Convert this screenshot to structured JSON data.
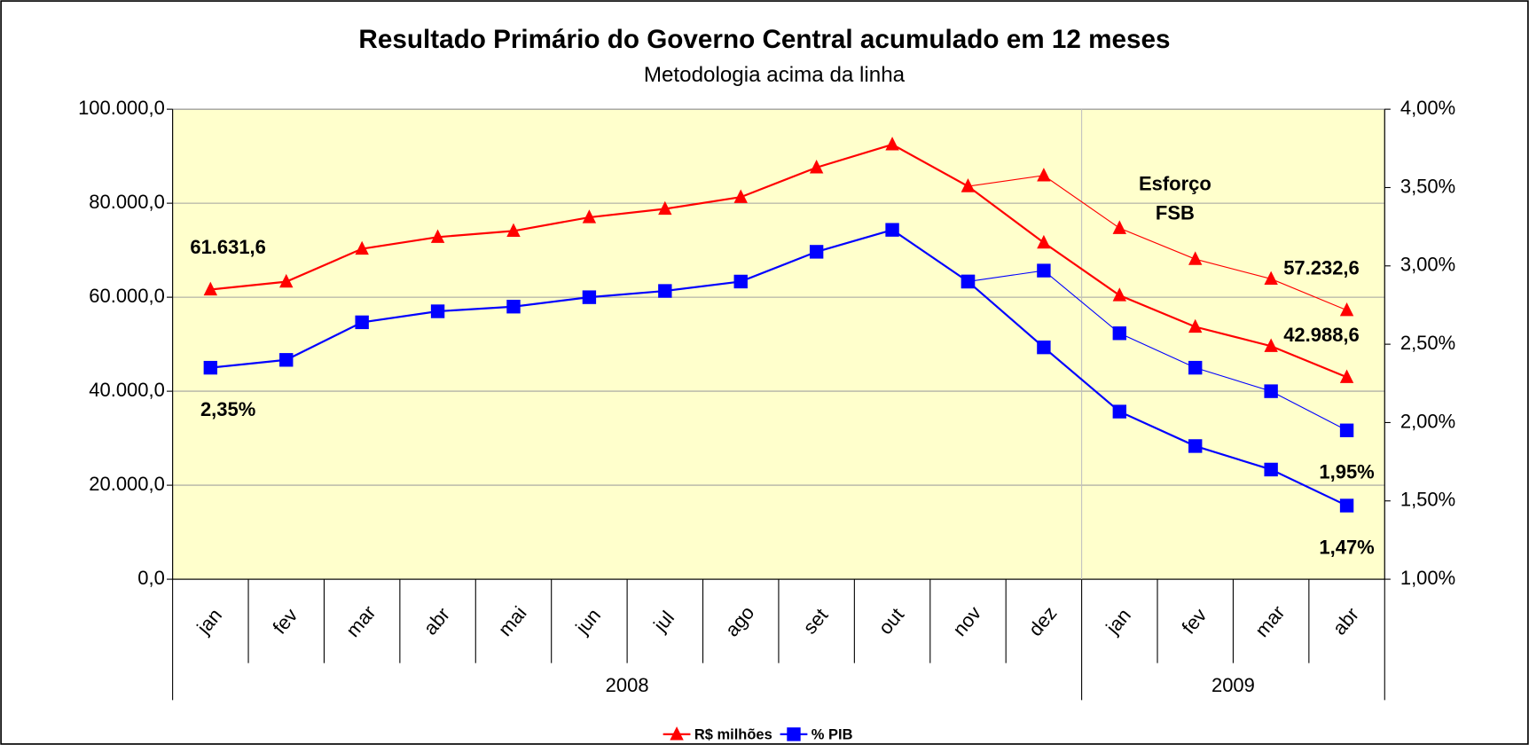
{
  "chart_data": {
    "type": "line",
    "title": "Resultado Primário do Governo Central acumulado em 12 meses",
    "subtitle": "Metodologia acima da linha",
    "categories": [
      "jan",
      "fev",
      "mar",
      "abr",
      "mai",
      "jun",
      "jul",
      "ago",
      "set",
      "out",
      "nov",
      "dez",
      "jan",
      "fev",
      "mar",
      "abr"
    ],
    "groups": [
      {
        "label": "2008",
        "count": 12
      },
      {
        "label": "2009",
        "count": 4
      }
    ],
    "annotation": [
      "Esforço",
      "FSB"
    ],
    "ylim": [
      0,
      100000
    ],
    "yticks": [
      {
        "value": 0,
        "label": "0,0"
      },
      {
        "value": 20000,
        "label": "20.000,0"
      },
      {
        "value": 40000,
        "label": "40.000,0"
      },
      {
        "value": 60000,
        "label": "60.000,0"
      },
      {
        "value": 80000,
        "label": "80.000,0"
      },
      {
        "value": 100000,
        "label": "100.000,0"
      }
    ],
    "y2lim": [
      1,
      4
    ],
    "y2ticks": [
      {
        "value": 1,
        "label": "1,00%"
      },
      {
        "value": 1.5,
        "label": "1,50%"
      },
      {
        "value": 2,
        "label": "2,00%"
      },
      {
        "value": 2.5,
        "label": "2,50%"
      },
      {
        "value": 3,
        "label": "3,00%"
      },
      {
        "value": 3.5,
        "label": "3,50%"
      },
      {
        "value": 4,
        "label": "4,00%"
      }
    ],
    "grid": true,
    "series": [
      {
        "name": "R$ milhões",
        "color": "#ff0000",
        "marker": "triangle",
        "line_width": 2,
        "values": [
          61631.6,
          63300,
          70300,
          72800,
          74100,
          77000,
          78800,
          81300,
          87600,
          92500,
          83600,
          71600,
          60400,
          53700,
          49600,
          42988.6
        ],
        "value_labels": [
          "61.631,6",
          null,
          null,
          null,
          null,
          null,
          null,
          null,
          null,
          null,
          null,
          null,
          null,
          null,
          null,
          "42.988,6"
        ]
      },
      {
        "name": "% PIB",
        "color": "#0000ff",
        "marker": "square",
        "line_width": 2,
        "axis": "y2",
        "values": [
          2.35,
          2.4,
          2.64,
          2.71,
          2.74,
          2.8,
          2.84,
          2.9,
          3.09,
          3.23,
          2.9,
          2.48,
          2.07,
          1.85,
          1.7,
          1.47
        ],
        "value_labels": [
          "2,35%",
          null,
          null,
          null,
          null,
          null,
          null,
          null,
          null,
          null,
          null,
          null,
          null,
          null,
          null,
          "1,47%"
        ]
      },
      {
        "color": "#ff0000",
        "marker": "triangle",
        "line_width": 1,
        "values": [
          null,
          null,
          null,
          null,
          null,
          null,
          null,
          null,
          null,
          null,
          83600,
          85900,
          74700,
          68100,
          63900,
          57232.6
        ],
        "value_labels": [
          null,
          null,
          null,
          null,
          null,
          null,
          null,
          null,
          null,
          null,
          null,
          null,
          null,
          null,
          null,
          "57.232,6"
        ]
      },
      {
        "color": "#0000ff",
        "marker": "square",
        "line_width": 1,
        "axis": "y2",
        "values": [
          null,
          null,
          null,
          null,
          null,
          null,
          null,
          null,
          null,
          null,
          2.9,
          2.97,
          2.57,
          2.35,
          2.2,
          1.95
        ],
        "value_labels": [
          null,
          null,
          null,
          null,
          null,
          null,
          null,
          null,
          null,
          null,
          null,
          null,
          null,
          null,
          null,
          "1,95%"
        ]
      }
    ]
  }
}
